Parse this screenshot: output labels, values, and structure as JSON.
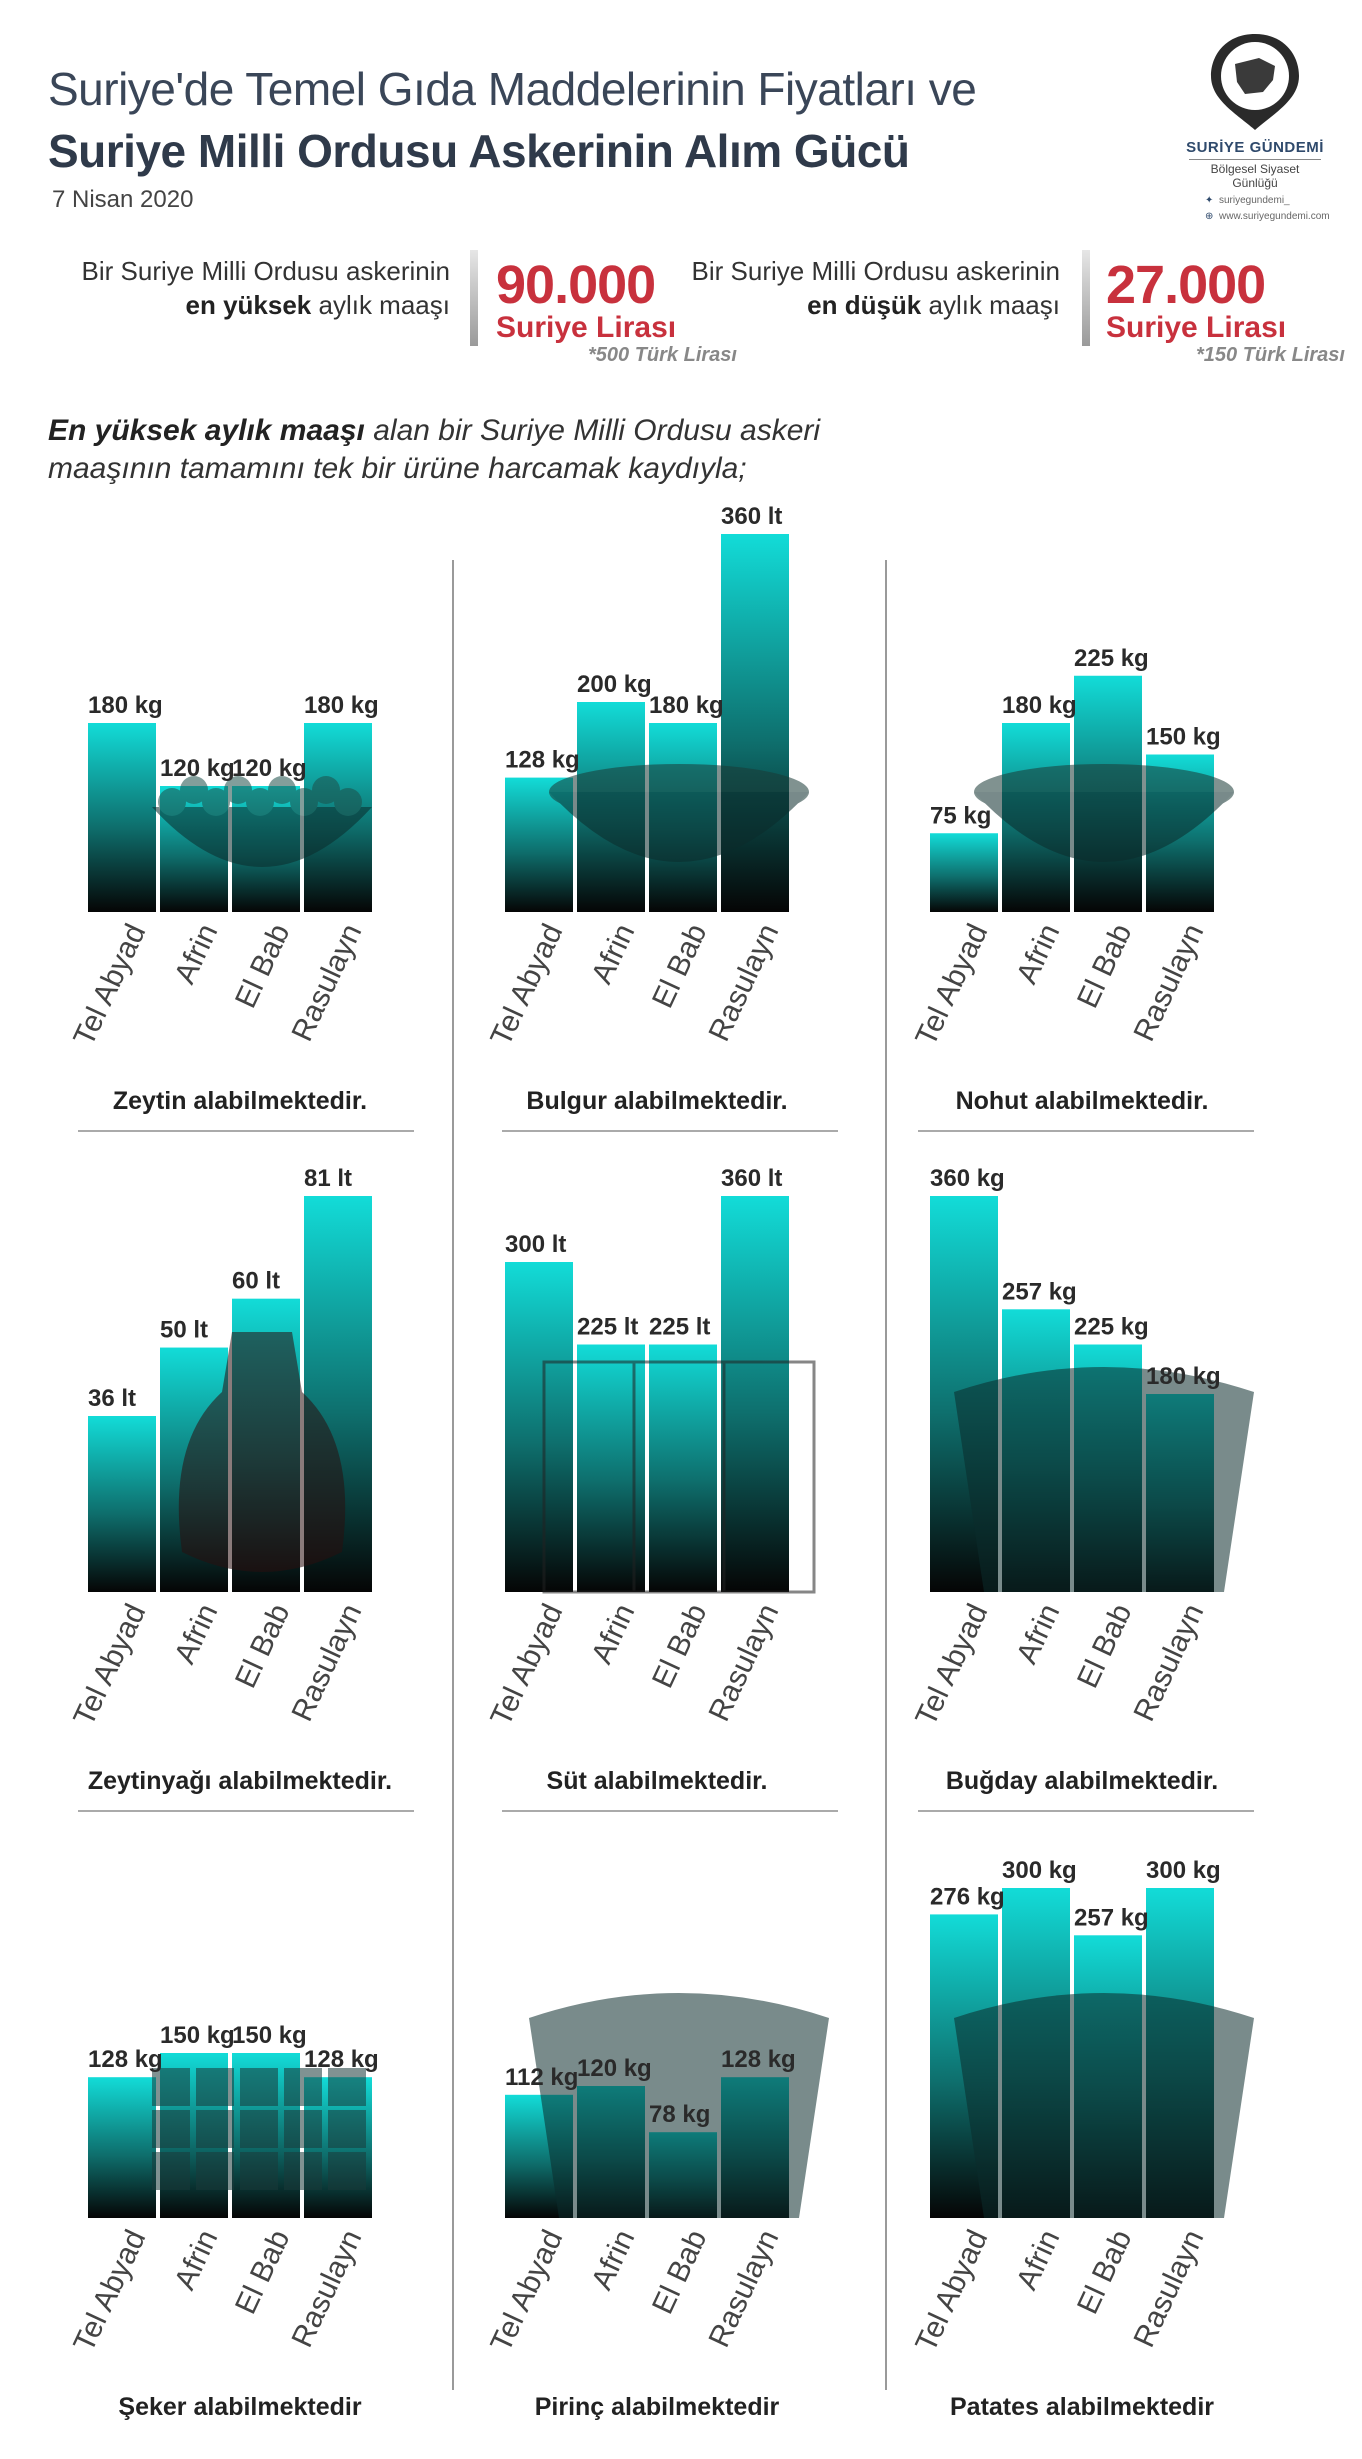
{
  "header": {
    "title_line1": "Suriye'de Temel Gıda Maddelerinin Fiyatları ve",
    "title_line2": "Suriye Milli Ordusu Askerinin Alım Gücü",
    "date": "7 Nisan 2020"
  },
  "logo": {
    "brand": "SURİYE GÜNDEMİ",
    "subtitle": "Bölgesel Siyaset Günlüğü",
    "twitter": "suriyegundemi_",
    "website": "www.suriyegundemi.com"
  },
  "salary": {
    "high": {
      "prefix": "Bir Suriye Milli Ordusu askerinin",
      "bold": "en yüksek",
      "suffix": "aylık maaşı",
      "value": "90.000",
      "currency": "Suriye Lirası",
      "note": "*500 Türk Lirası"
    },
    "low": {
      "prefix": "Bir Suriye Milli Ordusu askerinin",
      "bold": "en düşük",
      "suffix": "aylık maaşı",
      "value": "27.000",
      "currency": "Suriye Lirası",
      "note": "*150 Türk Lirası"
    }
  },
  "intro": {
    "bold": "En yüksek aylık maaşı",
    "line1_rest": "alan bir Suriye Milli Ordusu askeri",
    "line2": "maaşının tamamını tek bir ürüne harcamak kaydıyla;"
  },
  "colors": {
    "bar_top": "#12dcd8",
    "bar_bottom": "#050505",
    "accent_red": "#c8313d"
  },
  "chart_data": [
    {
      "type": "bar",
      "categories": [
        "Tel Abyad",
        "Afrin",
        "El Bab",
        "Rasulayn"
      ],
      "values": [
        180,
        120,
        120,
        180
      ],
      "labels": [
        "180 kg",
        "120 kg",
        "120 kg",
        "180 kg"
      ],
      "caption": "Zeytin alabilmektedir.",
      "ylim": [
        0,
        400
      ],
      "icon": "olive-bowl-icon"
    },
    {
      "type": "bar",
      "categories": [
        "Tel Abyad",
        "Afrin",
        "El Bab",
        "Rasulayn"
      ],
      "values": [
        128,
        200,
        180,
        360
      ],
      "labels": [
        "128 kg",
        "200 kg",
        "180 kg",
        "360 lt"
      ],
      "caption": "Bulgur alabilmektedir.",
      "ylim": [
        0,
        400
      ],
      "icon": "bulgur-bowl-icon"
    },
    {
      "type": "bar",
      "categories": [
        "Tel Abyad",
        "Afrin",
        "El Bab",
        "Rasulayn"
      ],
      "values": [
        75,
        180,
        225,
        150
      ],
      "labels": [
        "75 kg",
        "180 kg",
        "225 kg",
        "150 kg"
      ],
      "caption": "Nohut alabilmektedir.",
      "ylim": [
        0,
        400
      ],
      "icon": "chickpea-bowl-icon"
    },
    {
      "type": "bar",
      "categories": [
        "Tel Abyad",
        "Afrin",
        "El Bab",
        "Rasulayn"
      ],
      "values": [
        36,
        50,
        60,
        81
      ],
      "labels": [
        "36 lt",
        "50 lt",
        "60 lt",
        "81 lt"
      ],
      "caption": "Zeytinyağı alabilmektedir.",
      "ylim": [
        0,
        90
      ],
      "icon": "oil-bottle-icon"
    },
    {
      "type": "bar",
      "categories": [
        "Tel Abyad",
        "Afrin",
        "El Bab",
        "Rasulayn"
      ],
      "values": [
        300,
        225,
        225,
        360
      ],
      "labels": [
        "300 lt",
        "225 lt",
        "225 lt",
        "360 lt"
      ],
      "caption": "Süt alabilmektedir.",
      "ylim": [
        0,
        400
      ],
      "icon": "milk-glass-icon"
    },
    {
      "type": "bar",
      "categories": [
        "Tel Abyad",
        "Afrin",
        "El Bab",
        "Rasulayn"
      ],
      "values": [
        360,
        257,
        225,
        180
      ],
      "labels": [
        "360 kg",
        "257 kg",
        "225 kg",
        "180 kg"
      ],
      "caption": "Buğday alabilmektedir.",
      "ylim": [
        0,
        400
      ],
      "icon": "wheat-sack-icon"
    },
    {
      "type": "bar",
      "categories": [
        "Tel Abyad",
        "Afrin",
        "El Bab",
        "Rasulayn"
      ],
      "values": [
        128,
        150,
        150,
        128
      ],
      "labels": [
        "128 kg",
        "150 kg",
        "150 kg",
        "128 kg"
      ],
      "caption": "Şeker alabilmektedir",
      "ylim": [
        0,
        400
      ],
      "icon": "sugar-cubes-icon"
    },
    {
      "type": "bar",
      "categories": [
        "Tel Abyad",
        "Afrin",
        "El Bab",
        "Rasulayn"
      ],
      "values": [
        112,
        120,
        78,
        128
      ],
      "labels": [
        "112 kg",
        "120 kg",
        "78 kg",
        "128 kg"
      ],
      "caption": "Pirinç alabilmektedir",
      "ylim": [
        0,
        400
      ],
      "icon": "rice-sack-icon"
    },
    {
      "type": "bar",
      "categories": [
        "Tel Abyad",
        "Afrin",
        "El Bab",
        "Rasulayn"
      ],
      "values": [
        276,
        300,
        257,
        300
      ],
      "labels": [
        "276 kg",
        "300 kg",
        "257 kg",
        "300 kg"
      ],
      "caption": "Patates alabilmektedir",
      "ylim": [
        0,
        400
      ],
      "icon": "potato-sack-icon"
    }
  ]
}
